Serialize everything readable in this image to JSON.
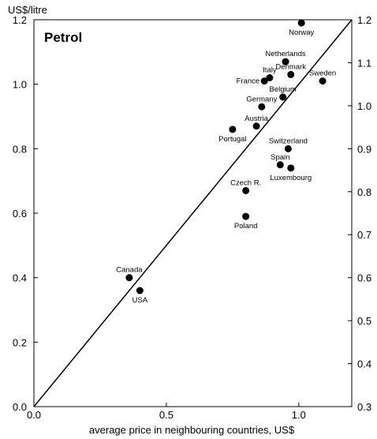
{
  "chart_data": {
    "type": "scatter",
    "title": "Petrol",
    "ylabel": "US$/litre",
    "xlabel": "average price in neighbouring countries, US$",
    "xlim": [
      0,
      1.2
    ],
    "ylim": [
      0,
      1.2
    ],
    "x_ticks": [
      "0.0",
      "0.5",
      "1.0"
    ],
    "x_tick_values": [
      0,
      0.5,
      1.0
    ],
    "y_ticks": [
      "0.0",
      "0.2",
      "0.4",
      "0.6",
      "0.8",
      "1.0",
      "1.2"
    ],
    "y_tick_values": [
      0,
      0.2,
      0.4,
      0.6,
      0.8,
      1.0,
      1.2
    ],
    "y2_ticks": [
      "0.3",
      "0.4",
      "0.5",
      "0.6",
      "0.7",
      "0.8",
      "0.9",
      "1.0",
      "1.1",
      "1.2"
    ],
    "y2_lim": [
      0.3,
      1.2
    ],
    "reference_line": "45-degree line",
    "grid": false,
    "points": [
      {
        "label": "Norway",
        "x": 1.01,
        "y": 1.19,
        "pos": "below"
      },
      {
        "label": "Netherlands",
        "x": 0.95,
        "y": 1.07,
        "pos": "above"
      },
      {
        "label": "Denmark",
        "x": 0.97,
        "y": 1.03,
        "pos": "above"
      },
      {
        "label": "Sweden",
        "x": 1.09,
        "y": 1.01,
        "pos": "above"
      },
      {
        "label": "Italy",
        "x": 0.89,
        "y": 1.02,
        "pos": "above"
      },
      {
        "label": "France",
        "x": 0.87,
        "y": 1.01,
        "pos": "left"
      },
      {
        "label": "Belgium",
        "x": 0.94,
        "y": 0.96,
        "pos": "above"
      },
      {
        "label": "Germany",
        "x": 0.86,
        "y": 0.93,
        "pos": "above"
      },
      {
        "label": "Austria",
        "x": 0.84,
        "y": 0.87,
        "pos": "above"
      },
      {
        "label": "Portugal",
        "x": 0.75,
        "y": 0.86,
        "pos": "below"
      },
      {
        "label": "Switzerland",
        "x": 0.96,
        "y": 0.8,
        "pos": "above"
      },
      {
        "label": "Spain",
        "x": 0.93,
        "y": 0.75,
        "pos": "above"
      },
      {
        "label": "Luxembourg",
        "x": 0.97,
        "y": 0.74,
        "pos": "below"
      },
      {
        "label": "Czech R.",
        "x": 0.8,
        "y": 0.67,
        "pos": "above"
      },
      {
        "label": "Poland",
        "x": 0.8,
        "y": 0.59,
        "pos": "below"
      },
      {
        "label": "Canada",
        "x": 0.36,
        "y": 0.4,
        "pos": "above"
      },
      {
        "label": "USA",
        "x": 0.4,
        "y": 0.36,
        "pos": "below"
      }
    ]
  }
}
